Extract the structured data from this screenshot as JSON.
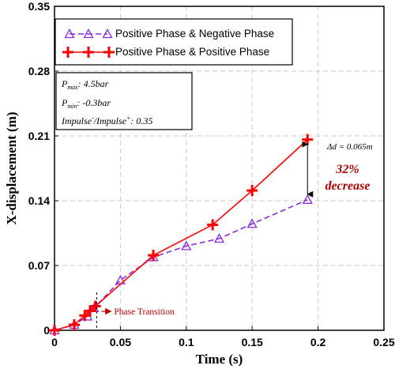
{
  "chart_data": {
    "type": "line",
    "xlabel": "Time (s)",
    "ylabel": "X-displacement (m)",
    "xlim": [
      0,
      0.25
    ],
    "ylim": [
      0,
      0.35
    ],
    "xticks": [
      "0",
      "0.05",
      "0.1",
      "0.15",
      "0.2",
      "0.25"
    ],
    "yticks": [
      "0",
      "0.07",
      "0.14",
      "0.21",
      "0.28",
      "0.35"
    ],
    "grid": true,
    "legend_position": "top-left",
    "series": [
      {
        "name": "Positive Phase & Negative Phase",
        "color": "#8a2be2",
        "line_style": "dashed",
        "marker": "triangle",
        "x": [
          0,
          0.015,
          0.025,
          0.03,
          0.05,
          0.075,
          0.1,
          0.125,
          0.15,
          0.192
        ],
        "y": [
          0,
          0.006,
          0.015,
          0.024,
          0.054,
          0.079,
          0.091,
          0.099,
          0.115,
          0.141
        ]
      },
      {
        "name": "Positive Phase & Positive Phase",
        "color": "#ff0000",
        "line_style": "solid",
        "marker": "plus",
        "x": [
          0,
          0.015,
          0.023,
          0.027,
          0.031,
          0.075,
          0.12,
          0.15,
          0.192
        ],
        "y": [
          0,
          0.006,
          0.016,
          0.021,
          0.026,
          0.081,
          0.114,
          0.151,
          0.206
        ]
      }
    ],
    "info_box": {
      "pmax_prefix": "P",
      "pmax_sub": "max",
      "pmax_value": ": 4.5bar",
      "pmin_prefix": "P",
      "pmin_sub": "min",
      "pmin_value": ": -0.3bar",
      "impulse_prefix": "Impulse",
      "impulse_sup1": "-",
      "impulse_mid": "/Impulse",
      "impulse_sup2": "+",
      "impulse_value": ": 0.35"
    },
    "annotations": {
      "delta_label": "Δd = 0.065m",
      "percent": "32%",
      "decrease": "decrease",
      "phase_transition": "Phase Transition",
      "phase_x": 0.032
    }
  }
}
